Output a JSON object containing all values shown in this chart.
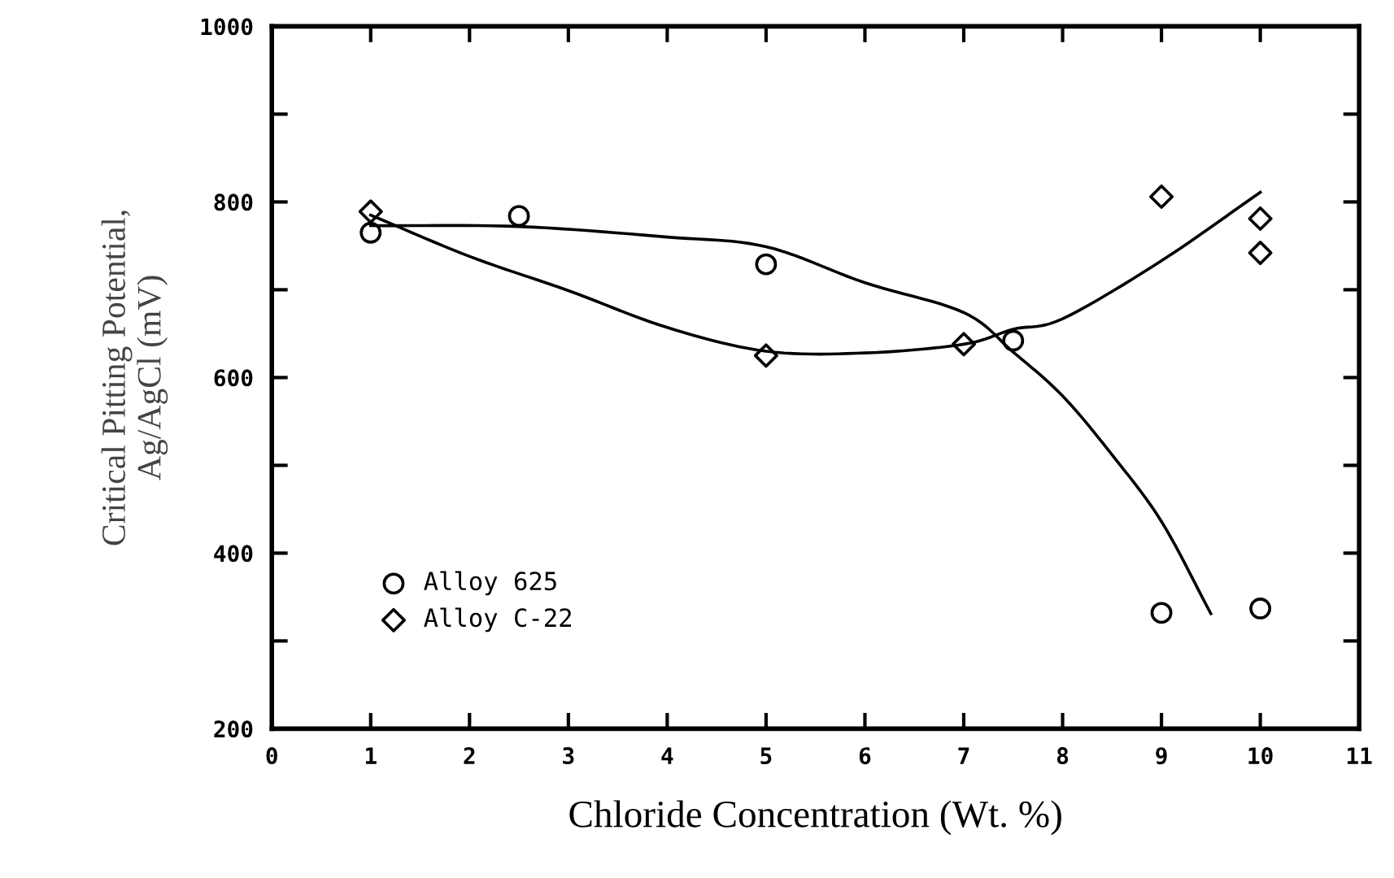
{
  "chart_data": {
    "type": "scatter",
    "xlabel": "Chloride Concentration (Wt. %)",
    "ylabel": "Critical Pitting Potential,\nAg/AgCl (mV)",
    "xlim": [
      0,
      11
    ],
    "xticks": [
      0,
      1,
      2,
      3,
      4,
      5,
      6,
      7,
      8,
      9,
      10,
      11
    ],
    "ylim": [
      200,
      1000
    ],
    "yticks": [
      200,
      {
        "value": 300,
        "label": null
      },
      400,
      {
        "value": 500,
        "label": null
      },
      600,
      {
        "value": 700,
        "label": null
      },
      800,
      {
        "value": 900,
        "label": null
      },
      1000
    ],
    "grid": false,
    "legend": "bottom left",
    "series": [
      {
        "name": "Alloy 625",
        "marker": "circle",
        "color": "#000000",
        "x": [
          1,
          2.5,
          5,
          7.5,
          9,
          10
        ],
        "values": [
          765,
          784,
          729,
          642,
          332,
          337
        ]
      },
      {
        "name": "Alloy C-22",
        "marker": "diamond",
        "color": "#000000",
        "x": [
          1,
          5,
          7,
          9,
          10,
          10
        ],
        "values": [
          789,
          625,
          638,
          806,
          781,
          742
        ]
      },
      {
        "type": "line",
        "marker": "none",
        "color": "#000000",
        "x": [
          1,
          2.5,
          4,
          5,
          6,
          7,
          7.5,
          8,
          8.5,
          9,
          9.5
        ],
        "values": [
          773,
          772,
          760,
          749,
          708,
          674,
          629,
          579,
          512,
          436,
          331
        ]
      },
      {
        "type": "line",
        "marker": "none",
        "color": "#000000",
        "x": [
          1,
          2,
          3,
          4,
          5,
          6,
          7,
          7.5,
          8,
          9,
          10
        ],
        "values": [
          785,
          738,
          699,
          657,
          630,
          628,
          638,
          655,
          667,
          733,
          811
        ]
      }
    ]
  }
}
